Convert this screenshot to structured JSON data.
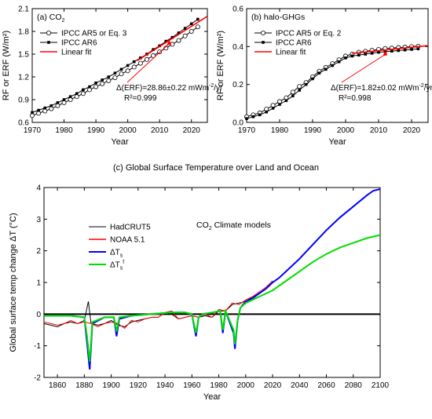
{
  "chart_data": [
    {
      "panel_label": "(a) CO",
      "panel_label_sub": "2",
      "type": "line",
      "xlabel": "Year",
      "ylabel": "RF or ERF (W/m²)",
      "xlim": [
        1970,
        2025
      ],
      "ylim": [
        0.6,
        2.1
      ],
      "xticks": [
        1970,
        1980,
        1990,
        2000,
        2010,
        2020
      ],
      "yticks": [
        0.6,
        0.9,
        1.2,
        1.5,
        1.8,
        2.1
      ],
      "legend_position": "upper-left",
      "series": [
        {
          "name": "IPCC AR5 or Eq. 3",
          "marker": "open-circle",
          "color": "#000000",
          "x": [
            1970,
            1972,
            1974,
            1976,
            1978,
            1980,
            1982,
            1984,
            1986,
            1988,
            1990,
            1992,
            1994,
            1996,
            1998,
            2000,
            2002,
            2004,
            2006,
            2008,
            2010,
            2012,
            2014,
            2016,
            2018,
            2020,
            2022
          ],
          "y": [
            0.69,
            0.72,
            0.75,
            0.78,
            0.82,
            0.86,
            0.9,
            0.94,
            0.98,
            1.03,
            1.07,
            1.11,
            1.15,
            1.19,
            1.24,
            1.28,
            1.33,
            1.38,
            1.43,
            1.48,
            1.53,
            1.58,
            1.63,
            1.68,
            1.74,
            1.8,
            1.86
          ]
        },
        {
          "name": "IPCC AR6",
          "marker": "filled-square",
          "color": "#000000",
          "x": [
            1970,
            1972,
            1974,
            1976,
            1978,
            1980,
            1982,
            1984,
            1986,
            1988,
            1990,
            1992,
            1994,
            1996,
            1998,
            2000,
            2002,
            2004,
            2006,
            2008,
            2010,
            2012,
            2014,
            2016,
            2018,
            2020,
            2022
          ],
          "y": [
            0.73,
            0.76,
            0.79,
            0.82,
            0.86,
            0.9,
            0.94,
            0.98,
            1.03,
            1.07,
            1.12,
            1.16,
            1.2,
            1.25,
            1.3,
            1.35,
            1.4,
            1.45,
            1.5,
            1.56,
            1.61,
            1.67,
            1.72,
            1.78,
            1.84,
            1.9,
            1.96
          ]
        },
        {
          "name": "Linear fit",
          "marker": "none",
          "color": "#ff0000",
          "x": [
            2003,
            2025
          ],
          "y": [
            1.415,
            2.0
          ]
        }
      ],
      "annotation": {
        "text": "Δ(ERF)=28.86±0.22 mWm",
        "sup": "-2",
        "tail": "/yr",
        "r2": "R²=0.999",
        "arrow_to": [
          2013,
          1.68
        ]
      }
    },
    {
      "panel_label": "(b) halo-GHGs",
      "type": "line",
      "xlabel": "Year",
      "ylabel": "RF or ERF (W/m²)",
      "xlim": [
        1970,
        2025
      ],
      "ylim": [
        0.0,
        0.6
      ],
      "xticks": [
        1970,
        1980,
        1990,
        2000,
        2010,
        2020
      ],
      "yticks": [
        0.0,
        0.2,
        0.4,
        0.6
      ],
      "legend_position": "upper-left",
      "series": [
        {
          "name": "IPCC AR5 or Eq. 2",
          "marker": "open-circle",
          "color": "#000000",
          "x": [
            1970,
            1972,
            1974,
            1976,
            1978,
            1980,
            1982,
            1984,
            1986,
            1988,
            1990,
            1992,
            1994,
            1996,
            1998,
            2000,
            2002,
            2004,
            2006,
            2008,
            2010,
            2012,
            2014,
            2016,
            2018,
            2020,
            2022
          ],
          "y": [
            0.03,
            0.04,
            0.05,
            0.07,
            0.09,
            0.11,
            0.13,
            0.16,
            0.19,
            0.21,
            0.24,
            0.27,
            0.29,
            0.31,
            0.33,
            0.35,
            0.36,
            0.37,
            0.375,
            0.38,
            0.385,
            0.39,
            0.392,
            0.395,
            0.397,
            0.4,
            0.402
          ]
        },
        {
          "name": "IPCC AR6",
          "marker": "filled-square",
          "color": "#000000",
          "x": [
            1970,
            1972,
            1974,
            1976,
            1978,
            1980,
            1982,
            1984,
            1986,
            1988,
            1990,
            1992,
            1994,
            1996,
            1998,
            2000,
            2002,
            2004,
            2006,
            2008,
            2010,
            2012,
            2014,
            2016,
            2018,
            2020,
            2022
          ],
          "y": [
            0.02,
            0.03,
            0.04,
            0.055,
            0.075,
            0.095,
            0.115,
            0.14,
            0.17,
            0.2,
            0.23,
            0.26,
            0.28,
            0.3,
            0.32,
            0.34,
            0.35,
            0.355,
            0.36,
            0.365,
            0.37,
            0.373,
            0.376,
            0.379,
            0.382,
            0.385,
            0.388
          ]
        },
        {
          "name": "Linear fit",
          "marker": "none",
          "color": "#ff0000",
          "x": [
            2002,
            2025
          ],
          "y": [
            0.364,
            0.405
          ]
        }
      ],
      "annotation": {
        "text": "Δ(ERF)=1.82±0.02 mWm",
        "sup": "-2",
        "tail": "/yr",
        "r2": "R²=0.998",
        "arrow_to": [
          2012,
          0.375
        ]
      }
    },
    {
      "panel_label": "(c) Global Surface Temperature over Land and Ocean",
      "type": "line",
      "xlabel": "Year",
      "ylabel": "Global surface temp change ΔT (°C)",
      "xlim": [
        1850,
        2100
      ],
      "ylim": [
        -2,
        4
      ],
      "xticks": [
        1860,
        1880,
        1900,
        1920,
        1940,
        1960,
        1980,
        2000,
        2020,
        2040,
        2060,
        2080,
        2100
      ],
      "yticks": [
        -2,
        -1,
        0,
        1,
        2,
        3,
        4
      ],
      "text_note": {
        "main": "CO",
        "sub": "2",
        "tail": " Climate models"
      },
      "legend_position": "upper-left",
      "zero_line": true,
      "series": [
        {
          "name": "HadCRUT5",
          "color": "#000000",
          "x": [
            1850,
            1855,
            1860,
            1865,
            1870,
            1875,
            1880,
            1883,
            1885,
            1890,
            1895,
            1900,
            1905,
            1910,
            1915,
            1920,
            1925,
            1930,
            1935,
            1940,
            1945,
            1950,
            1955,
            1960,
            1965,
            1970,
            1975,
            1980,
            1985,
            1990,
            1995,
            2000,
            2005,
            2010,
            2015,
            2020
          ],
          "y": [
            -0.3,
            -0.35,
            -0.4,
            -0.3,
            -0.25,
            -0.3,
            -0.2,
            0.4,
            -0.3,
            -0.35,
            -0.3,
            -0.2,
            -0.35,
            -0.4,
            -0.25,
            -0.2,
            -0.15,
            -0.1,
            -0.1,
            0.05,
            0.0,
            -0.15,
            -0.1,
            -0.05,
            -0.1,
            -0.05,
            -0.1,
            0.1,
            0.1,
            0.3,
            0.35,
            0.4,
            0.55,
            0.65,
            0.8,
            1.0
          ]
        },
        {
          "name": "NOAA 5.1",
          "color": "#ff0000",
          "x": [
            1850,
            1855,
            1860,
            1865,
            1870,
            1875,
            1880,
            1885,
            1890,
            1895,
            1900,
            1905,
            1910,
            1915,
            1920,
            1925,
            1930,
            1935,
            1940,
            1945,
            1950,
            1955,
            1960,
            1965,
            1970,
            1975,
            1980,
            1985,
            1990,
            1995,
            2000,
            2005,
            2010,
            2015,
            2020
          ],
          "y": [
            -0.25,
            -0.3,
            -0.35,
            -0.3,
            -0.2,
            -0.3,
            -0.25,
            -0.3,
            -0.4,
            -0.3,
            -0.25,
            -0.3,
            -0.45,
            -0.2,
            -0.25,
            -0.15,
            -0.1,
            -0.1,
            0.05,
            0.1,
            -0.15,
            -0.1,
            -0.05,
            -0.1,
            0.0,
            -0.1,
            0.15,
            0.1,
            0.35,
            0.3,
            0.45,
            0.55,
            0.7,
            0.85,
            1.05
          ]
        },
        {
          "name": "ΔT",
          "name_sub": "s",
          "color": "#0000ff",
          "x": [
            1850,
            1860,
            1870,
            1880,
            1882,
            1884,
            1886,
            1895,
            1902,
            1904,
            1906,
            1915,
            1930,
            1945,
            1955,
            1960,
            1963,
            1965,
            1968,
            1975,
            1981,
            1983,
            1985,
            1991,
            1992,
            1994,
            1996,
            2000,
            2005,
            2010,
            2015,
            2020,
            2025,
            2030,
            2040,
            2050,
            2060,
            2070,
            2080,
            2090,
            2095,
            2100
          ],
          "y": [
            -0.05,
            -0.05,
            -0.05,
            -0.1,
            -0.9,
            -1.75,
            -0.3,
            -0.1,
            -0.1,
            -0.7,
            -0.15,
            -0.05,
            0.0,
            0.05,
            0.05,
            0.0,
            -0.7,
            -0.1,
            0.0,
            0.05,
            0.1,
            -0.6,
            0.1,
            -0.6,
            -1.1,
            -0.2,
            0.2,
            0.4,
            0.5,
            0.65,
            0.8,
            1.0,
            1.15,
            1.35,
            1.75,
            2.2,
            2.65,
            3.05,
            3.4,
            3.75,
            3.9,
            3.95
          ]
        },
        {
          "name": "ΔT",
          "name_sub": "s",
          "name_sup": "t",
          "color": "#00dd00",
          "x": [
            1850,
            1860,
            1870,
            1880,
            1882,
            1884,
            1886,
            1895,
            1902,
            1904,
            1906,
            1915,
            1930,
            1945,
            1955,
            1960,
            1963,
            1965,
            1968,
            1975,
            1981,
            1983,
            1985,
            1991,
            1992,
            1994,
            1996,
            2000,
            2005,
            2010,
            2015,
            2020,
            2025,
            2030,
            2040,
            2050,
            2060,
            2070,
            2080,
            2090,
            2100
          ],
          "y": [
            -0.05,
            -0.05,
            -0.05,
            -0.1,
            -0.7,
            -1.5,
            -0.25,
            -0.1,
            -0.1,
            -0.55,
            -0.1,
            -0.05,
            0.0,
            0.05,
            0.05,
            0.0,
            -0.6,
            -0.1,
            0.0,
            0.05,
            0.1,
            -0.5,
            0.1,
            -0.5,
            -0.95,
            -0.2,
            0.2,
            0.35,
            0.45,
            0.55,
            0.65,
            0.75,
            0.9,
            1.05,
            1.35,
            1.65,
            1.9,
            2.1,
            2.25,
            2.4,
            2.5
          ]
        }
      ]
    }
  ]
}
